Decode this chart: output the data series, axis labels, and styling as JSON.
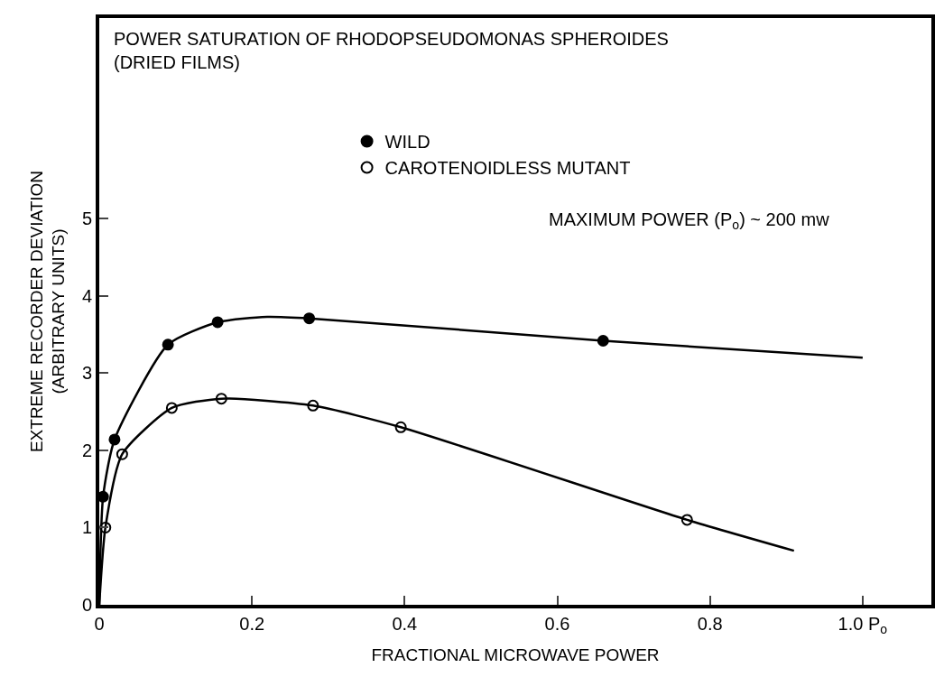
{
  "chart_data": {
    "type": "scatter",
    "title": "POWER SATURATION OF RHODOPSEUDOMONAS SPHEROIDES",
    "subtitle": "(DRIED FILMS)",
    "xlabel": "FRACTIONAL MICROWAVE POWER",
    "ylabel": "EXTREME RECORDER DEVIATION\n(ARBITRARY UNITS)",
    "annotations": [
      "MAXIMUM POWER (P$_{o}$) ~ 200 mw"
    ],
    "xlim": [
      0,
      1.09
    ],
    "ylim": [
      0,
      7.6
    ],
    "xticks": [
      0,
      0.2,
      0.4,
      0.6,
      0.8,
      {
        "value": 1.0,
        "label": "1.0 P$_{o}$"
      }
    ],
    "yticks": [
      0,
      1,
      2,
      3,
      4,
      5
    ],
    "legend": "top",
    "marker": "circle",
    "series": [
      {
        "name": "WILD",
        "color": "#000000",
        "x": [
          0.005,
          0.02,
          0.09,
          0.155,
          0.275,
          0.66
        ],
        "values": [
          1.4,
          2.14,
          3.37,
          3.66,
          3.71,
          3.42
        ]
      },
      {
        "name": "CAROTENOIDLESS MUTANT",
        "color": "#000000",
        "x": [
          0.008,
          0.03,
          0.095,
          0.16,
          0.28,
          0.395,
          0.77
        ],
        "values": [
          1.0,
          1.95,
          2.55,
          2.67,
          2.58,
          2.3,
          1.1
        ]
      },
      {
        "type": "line",
        "color": "#000000",
        "marker": "none",
        "x": [
          0,
          0.005,
          0.02,
          0.09,
          0.155,
          0.22,
          0.275,
          0.66,
          1.0
        ],
        "values": [
          0,
          1.4,
          2.14,
          3.37,
          3.66,
          3.73,
          3.71,
          3.42,
          3.2
        ]
      },
      {
        "type": "line",
        "color": "#000000",
        "marker": "none",
        "x": [
          0,
          0.008,
          0.03,
          0.095,
          0.16,
          0.28,
          0.395,
          0.77,
          0.91
        ],
        "values": [
          0,
          1.0,
          1.95,
          2.55,
          2.67,
          2.58,
          2.3,
          1.1,
          0.7
        ]
      }
    ]
  }
}
